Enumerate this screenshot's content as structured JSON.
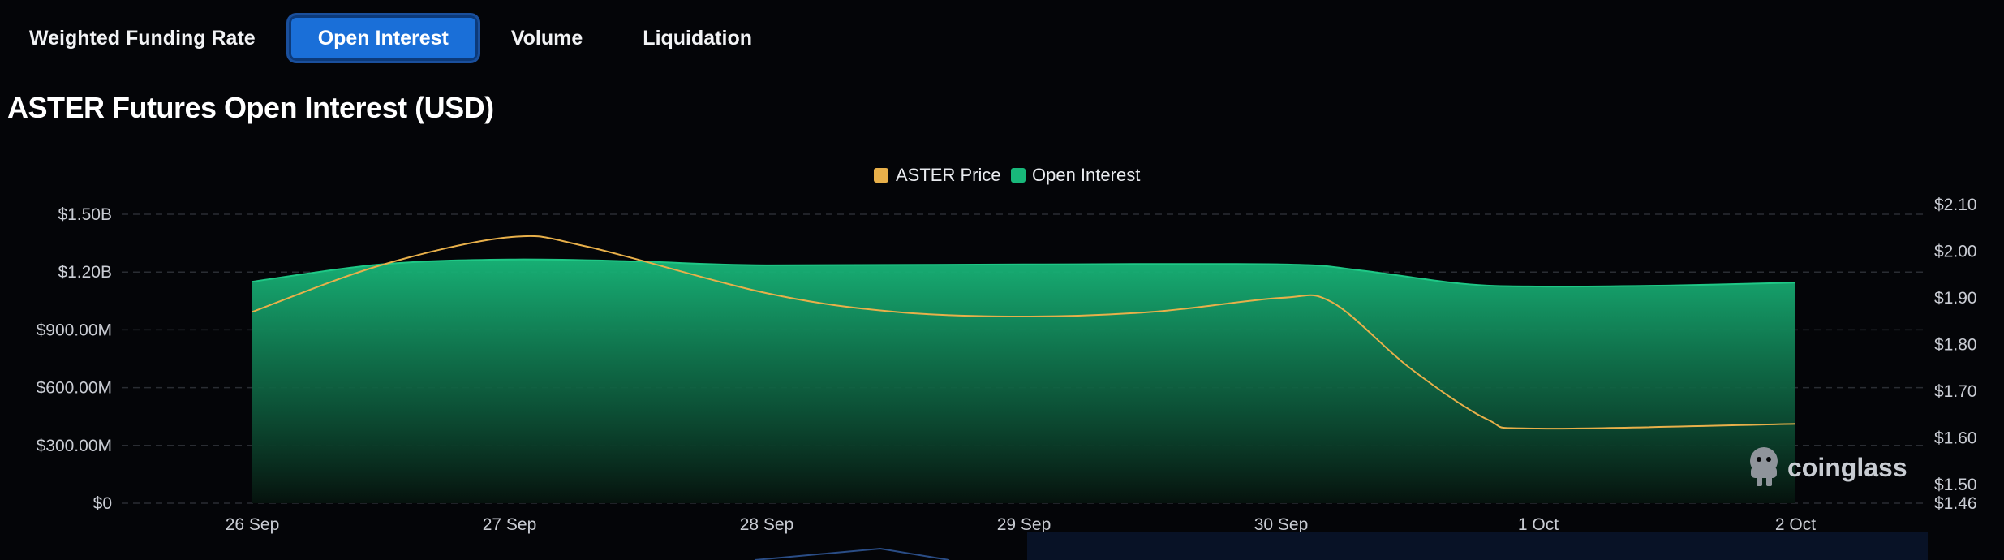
{
  "tabs": [
    {
      "label": "Weighted Funding Rate",
      "active": false
    },
    {
      "label": "Open Interest",
      "active": true
    },
    {
      "label": "Volume",
      "active": false
    },
    {
      "label": "Liquidation",
      "active": false
    }
  ],
  "title": "ASTER Futures Open Interest (USD)",
  "watermark": "coinglass",
  "colors": {
    "price": "#e8b04a",
    "open_interest": "#18b87a",
    "background": "#040508",
    "active_tab": "#1a6fd8"
  },
  "chart_data": {
    "type": "area",
    "categories": [
      "26 Sep",
      "27 Sep",
      "28 Sep",
      "29 Sep",
      "30 Sep",
      "1 Oct",
      "2 Oct"
    ],
    "legend": [
      "ASTER Price",
      "Open Interest"
    ],
    "legend_position": "top-center",
    "grid": true,
    "y_left": {
      "ticks": [
        "$0",
        "$300.00M",
        "$600.00M",
        "$900.00M",
        "$1.20B",
        "$1.50B"
      ],
      "tick_values": [
        0,
        300000000,
        600000000,
        900000000,
        1200000000,
        1500000000
      ],
      "range": [
        0,
        1500000000
      ]
    },
    "y_right": {
      "ticks": [
        "$1.46",
        "$1.50",
        "$1.60",
        "$1.70",
        "$1.80",
        "$1.90",
        "$2.00",
        "$2.10"
      ],
      "tick_values": [
        1.46,
        1.5,
        1.6,
        1.7,
        1.8,
        1.9,
        2.0,
        2.1
      ],
      "range": [
        1.46,
        2.1
      ]
    },
    "series": [
      {
        "name": "Open Interest",
        "axis": "left",
        "kind": "area",
        "x": [
          0,
          0.5,
          1,
          1.5,
          2,
          3,
          4,
          4.3,
          4.7,
          5,
          5.5,
          6
        ],
        "values": [
          1150000000,
          1240000000,
          1265000000,
          1255000000,
          1235000000,
          1240000000,
          1240000000,
          1210000000,
          1140000000,
          1125000000,
          1130000000,
          1145000000
        ]
      },
      {
        "name": "ASTER Price",
        "axis": "right",
        "kind": "line",
        "x": [
          0,
          0.5,
          1,
          1.3,
          2,
          2.5,
          3,
          3.5,
          4,
          4.2,
          4.5,
          4.8,
          5,
          6
        ],
        "values": [
          1.87,
          1.97,
          2.03,
          2.01,
          1.91,
          1.87,
          1.86,
          1.87,
          1.9,
          1.89,
          1.75,
          1.64,
          1.62,
          1.63
        ]
      }
    ]
  }
}
